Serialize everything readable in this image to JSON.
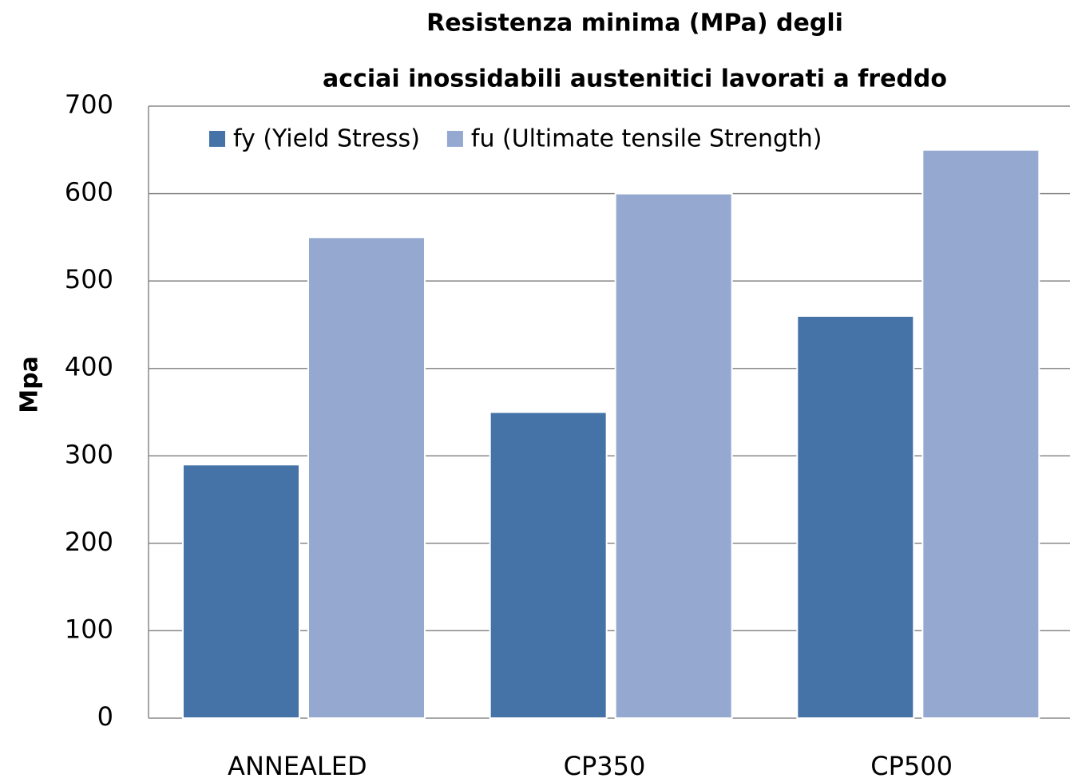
{
  "chart_data": {
    "type": "bar",
    "title": [
      "Resistenza minima (MPa) degli",
      "acciai inossidabili austenitici lavorati a freddo"
    ],
    "y_label": "Mpa",
    "categories": [
      "ANNEALED",
      "CP350",
      "CP500"
    ],
    "series": [
      {
        "name": "fy (Yield Stress)",
        "color": "#4572a7",
        "values": [
          290,
          350,
          460
        ]
      },
      {
        "name": "fu (Ultimate tensile Strength)",
        "color": "#95a9d0",
        "values": [
          550,
          600,
          650
        ]
      }
    ],
    "ylim": [
      0,
      700
    ],
    "yticks": [
      0,
      100,
      200,
      300,
      400,
      500,
      600,
      700
    ],
    "grid": true,
    "legend": "top-left"
  }
}
